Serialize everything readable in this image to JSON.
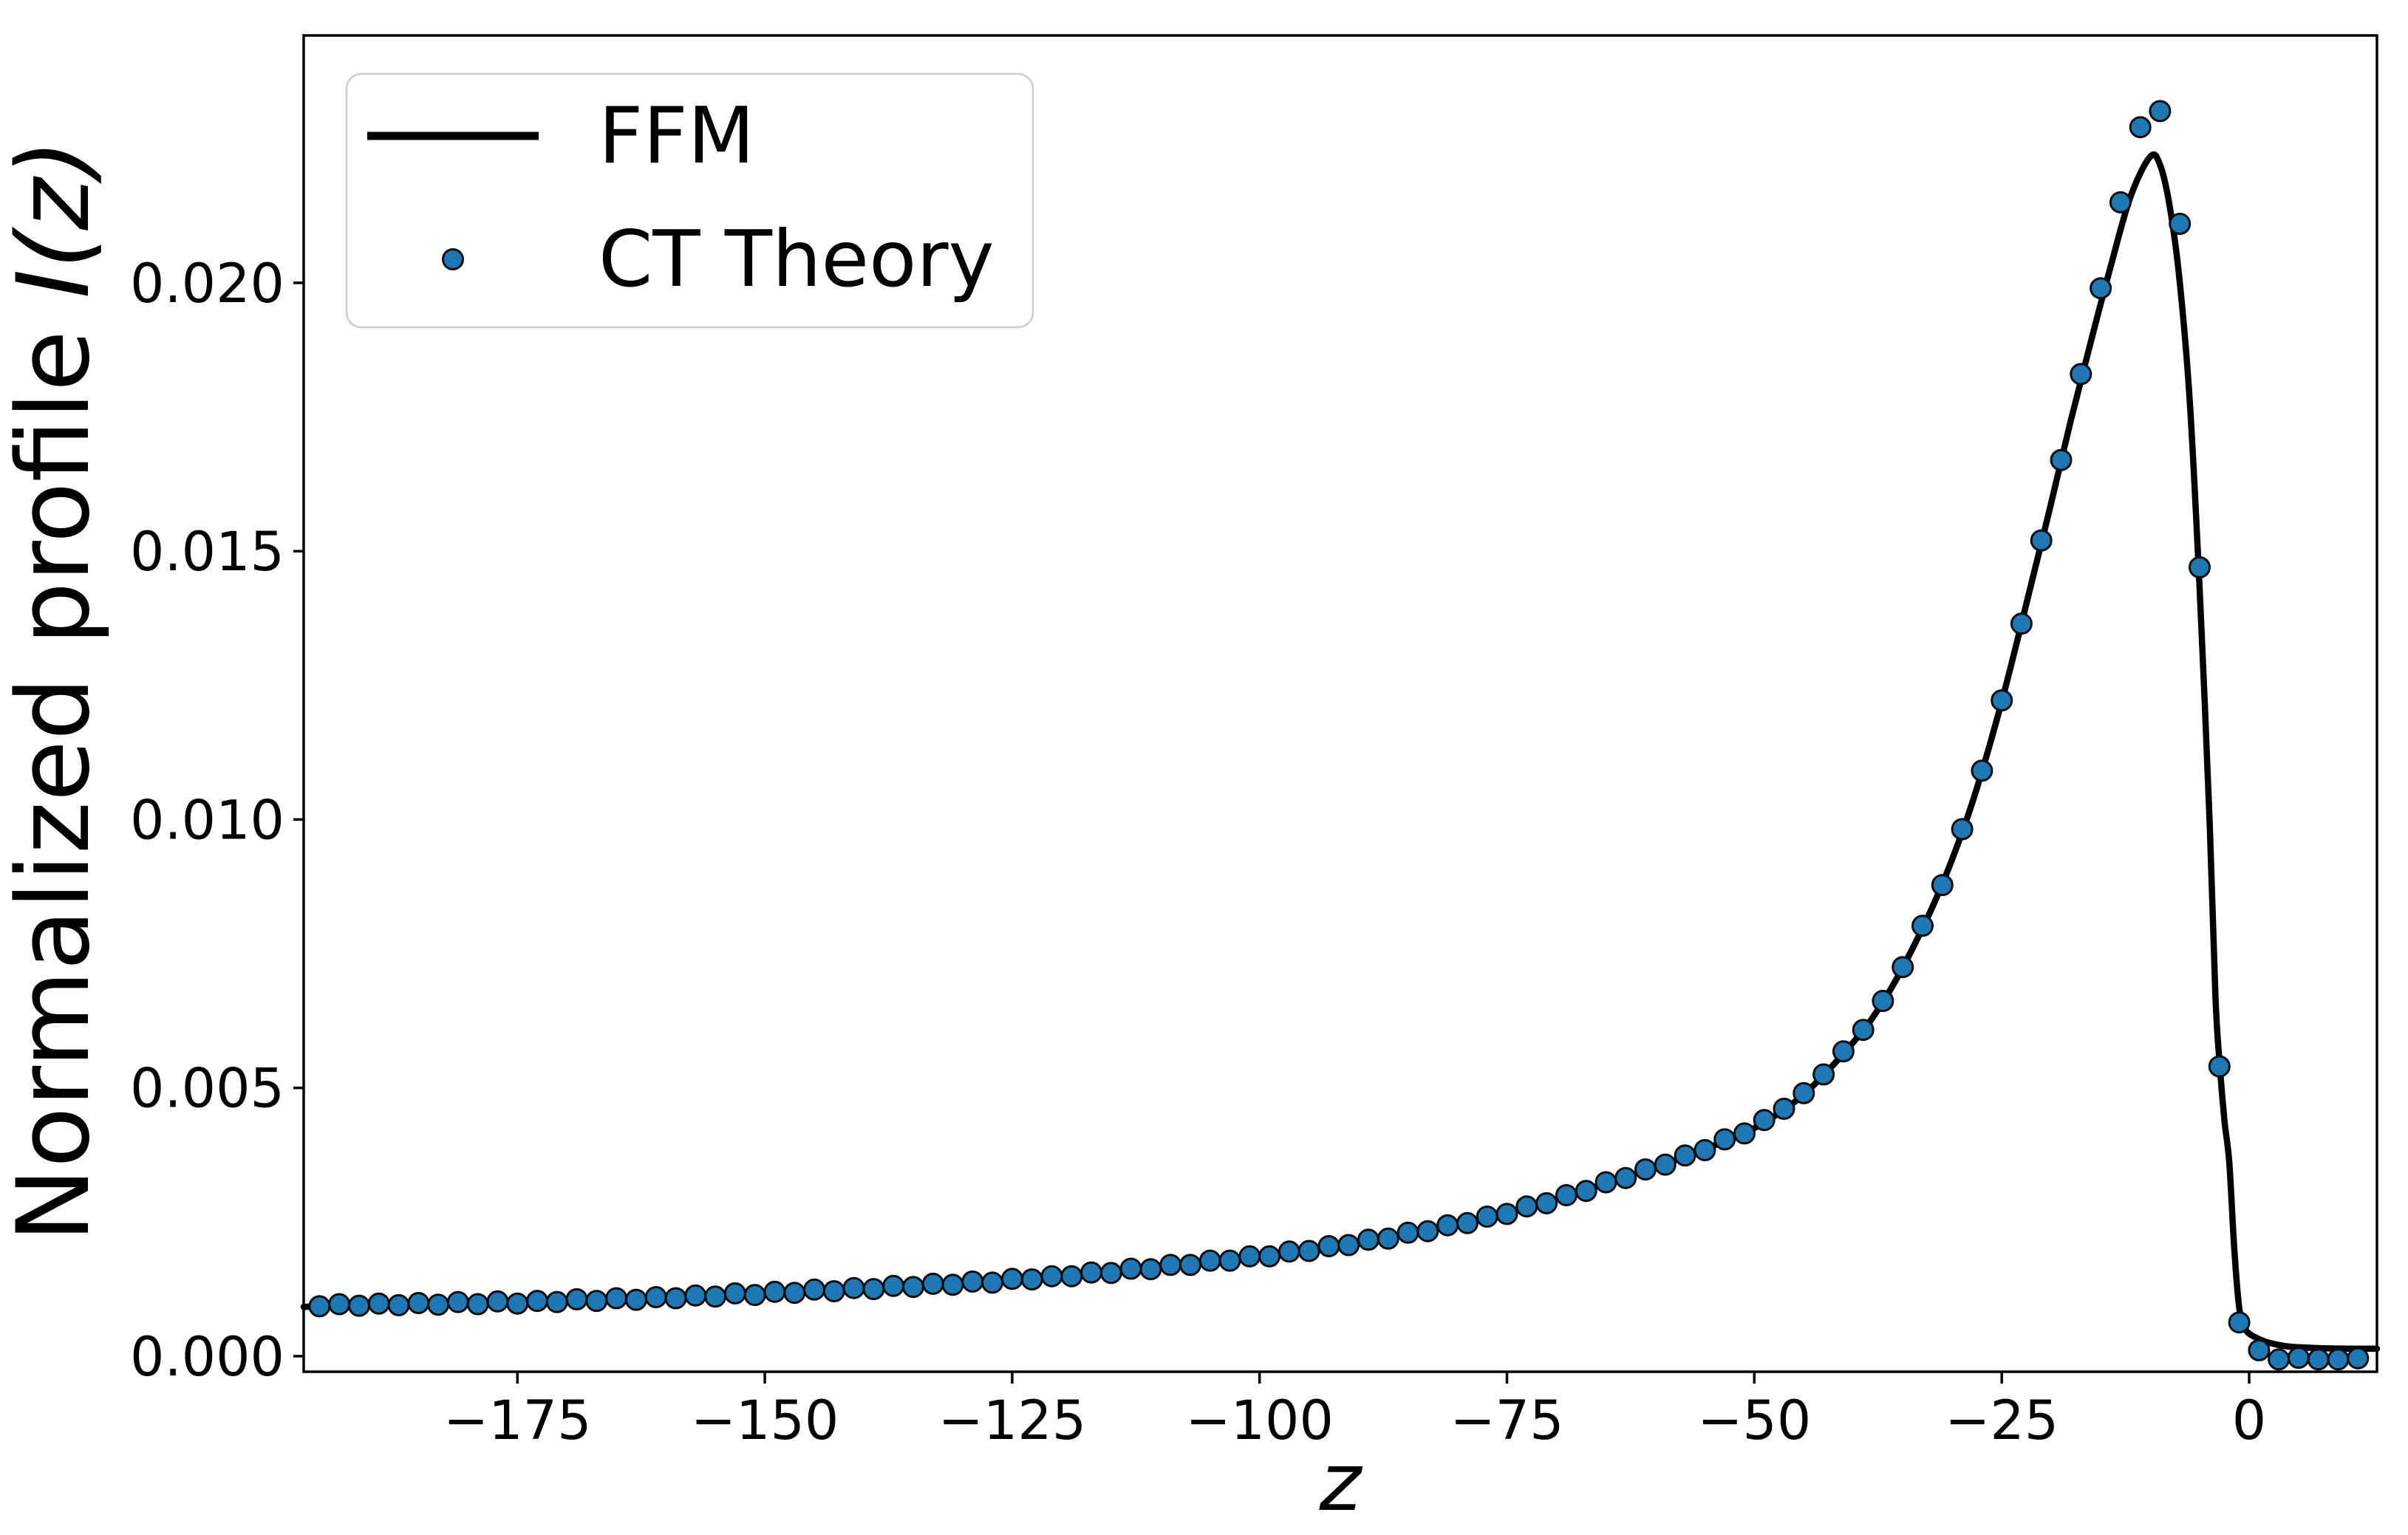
{
  "colors": {
    "background": "#ffffff",
    "line": "#000000",
    "marker_fill": "#1f77b4",
    "marker_edge": "#0d0d0d",
    "axis": "#000000",
    "text": "#000000",
    "legend_border": "#cccccc",
    "legend_fill": "#ffffff"
  },
  "chart_data": {
    "type": "line+scatter",
    "title": "",
    "xlabel": "z",
    "ylabel": "Normalized profile I(z)",
    "ylabel_prefix": "Normalized profile ",
    "ylabel_symbol": "I(z)",
    "xlim": [
      -196.6,
      12.92
    ],
    "ylim": [
      -0.00029,
      0.02461
    ],
    "grid": false,
    "x_ticks": {
      "values": [
        -175,
        -150,
        -125,
        -100,
        -75,
        -50,
        -25,
        0
      ],
      "labels": [
        "−175",
        "−150",
        "−125",
        "−100",
        "−75",
        "−50",
        "−25",
        "0"
      ]
    },
    "y_ticks": {
      "values": [
        0.0,
        0.005,
        0.01,
        0.015,
        0.02
      ],
      "labels": [
        "0.000",
        "0.005",
        "0.010",
        "0.015",
        "0.020"
      ]
    },
    "legend": {
      "position": "upper left",
      "items": [
        {
          "name": "FFM",
          "type": "line"
        },
        {
          "name": "CT Theory",
          "type": "scatter"
        }
      ]
    },
    "series": [
      {
        "name": "FFM",
        "type": "line",
        "color": "#000000",
        "points": [
          [
            -196.6,
            0.00092
          ],
          [
            -190,
            0.00096
          ],
          [
            -180,
            0.00099
          ],
          [
            -170,
            0.00103
          ],
          [
            -160,
            0.00109
          ],
          [
            -150,
            0.00117
          ],
          [
            -140,
            0.00126
          ],
          [
            -130,
            0.00136
          ],
          [
            -120,
            0.00149
          ],
          [
            -110,
            0.00166
          ],
          [
            -100,
            0.00186
          ],
          [
            -95,
            0.00198
          ],
          [
            -90,
            0.00212
          ],
          [
            -85,
            0.00228
          ],
          [
            -80,
            0.00246
          ],
          [
            -75,
            0.00267
          ],
          [
            -70,
            0.00292
          ],
          [
            -65,
            0.00322
          ],
          [
            -60,
            0.00352
          ],
          [
            -55,
            0.00386
          ],
          [
            -50,
            0.00425
          ],
          [
            -45,
            0.00488
          ],
          [
            -40,
            0.00585
          ],
          [
            -37,
            0.0066
          ],
          [
            -34,
            0.0076
          ],
          [
            -31,
            0.0088
          ],
          [
            -28,
            0.0103
          ],
          [
            -25,
            0.0122
          ],
          [
            -22,
            0.0144
          ],
          [
            -20,
            0.0159
          ],
          [
            -18,
            0.01745
          ],
          [
            -16,
            0.0189
          ],
          [
            -14,
            0.0203
          ],
          [
            -12,
            0.0216
          ],
          [
            -10,
            0.02235
          ],
          [
            -9,
            0.0222
          ],
          [
            -8,
            0.0214
          ],
          [
            -7,
            0.02
          ],
          [
            -6,
            0.0178
          ],
          [
            -5,
            0.0143
          ],
          [
            -4,
            0.01
          ],
          [
            -3.4,
            0.0067
          ],
          [
            -3,
            0.0055
          ],
          [
            -2.5,
            0.0044
          ],
          [
            -2,
            0.0036
          ],
          [
            -1.5,
            0.002
          ],
          [
            -1,
            0.0009
          ],
          [
            -0.5,
            0.00055
          ],
          [
            0,
            0.00042
          ],
          [
            1,
            0.00032
          ],
          [
            2,
            0.00025
          ],
          [
            4,
            0.00018
          ],
          [
            7,
            0.00015
          ],
          [
            10,
            0.00014
          ],
          [
            12.92,
            0.00014
          ]
        ]
      },
      {
        "name": "CT Theory",
        "type": "scatter",
        "fill": "#1f77b4",
        "edge": "#0d0d0d",
        "points": [
          [
            -195,
            0.00093
          ],
          [
            -193,
            0.00097
          ],
          [
            -191,
            0.00094
          ],
          [
            -189,
            0.00098
          ],
          [
            -187,
            0.00095
          ],
          [
            -185,
            0.00099
          ],
          [
            -183,
            0.00096
          ],
          [
            -181,
            0.00101
          ],
          [
            -179,
            0.00097
          ],
          [
            -177,
            0.00102
          ],
          [
            -175,
            0.00098
          ],
          [
            -173,
            0.00103
          ],
          [
            -171,
            0.00101
          ],
          [
            -169,
            0.00106
          ],
          [
            -167,
            0.00103
          ],
          [
            -165,
            0.00108
          ],
          [
            -163,
            0.00105
          ],
          [
            -161,
            0.0011
          ],
          [
            -159,
            0.00108
          ],
          [
            -157,
            0.00113
          ],
          [
            -155,
            0.00111
          ],
          [
            -153,
            0.00117
          ],
          [
            -151,
            0.00114
          ],
          [
            -149,
            0.0012
          ],
          [
            -147,
            0.00118
          ],
          [
            -145,
            0.00124
          ],
          [
            -143,
            0.00121
          ],
          [
            -141,
            0.00127
          ],
          [
            -139,
            0.00125
          ],
          [
            -137,
            0.00131
          ],
          [
            -135,
            0.00129
          ],
          [
            -133,
            0.00135
          ],
          [
            -131,
            0.00133
          ],
          [
            -129,
            0.00139
          ],
          [
            -127,
            0.00137
          ],
          [
            -125,
            0.00144
          ],
          [
            -123,
            0.00143
          ],
          [
            -121,
            0.00149
          ],
          [
            -119,
            0.00149
          ],
          [
            -117,
            0.00156
          ],
          [
            -115,
            0.00155
          ],
          [
            -113,
            0.00163
          ],
          [
            -111,
            0.00162
          ],
          [
            -109,
            0.0017
          ],
          [
            -107,
            0.0017
          ],
          [
            -105,
            0.00178
          ],
          [
            -103,
            0.00178
          ],
          [
            -101,
            0.00186
          ],
          [
            -99,
            0.00186
          ],
          [
            -97,
            0.00195
          ],
          [
            -95,
            0.00196
          ],
          [
            -93,
            0.00205
          ],
          [
            -91,
            0.00207
          ],
          [
            -89,
            0.00217
          ],
          [
            -87,
            0.00219
          ],
          [
            -85,
            0.0023
          ],
          [
            -83,
            0.00233
          ],
          [
            -81,
            0.00244
          ],
          [
            -79,
            0.00248
          ],
          [
            -77,
            0.0026
          ],
          [
            -75,
            0.00265
          ],
          [
            -73,
            0.00279
          ],
          [
            -71,
            0.00285
          ],
          [
            -69,
            0.003
          ],
          [
            -67,
            0.00308
          ],
          [
            -65,
            0.00324
          ],
          [
            -63,
            0.00332
          ],
          [
            -61,
            0.00348
          ],
          [
            -59,
            0.00357
          ],
          [
            -57,
            0.00374
          ],
          [
            -55,
            0.00384
          ],
          [
            -53,
            0.00404
          ],
          [
            -51,
            0.00415
          ],
          [
            -49,
            0.0044
          ],
          [
            -47,
            0.00461
          ],
          [
            -45,
            0.0049
          ],
          [
            -43,
            0.00525
          ],
          [
            -41,
            0.00568
          ],
          [
            -39,
            0.00608
          ],
          [
            -37,
            0.00662
          ],
          [
            -35,
            0.00725
          ],
          [
            -33,
            0.00802
          ],
          [
            -31,
            0.00878
          ],
          [
            -29,
            0.00982
          ],
          [
            -27,
            0.01091
          ],
          [
            -25,
            0.01222
          ],
          [
            -23,
            0.01365
          ],
          [
            -21,
            0.0152
          ],
          [
            -19,
            0.0167
          ],
          [
            -17,
            0.0183
          ],
          [
            -15,
            0.0199
          ],
          [
            -13,
            0.0215
          ],
          [
            -11,
            0.0229
          ],
          [
            -9,
            0.0232
          ],
          [
            -7,
            0.0211
          ],
          [
            -5,
            0.0147
          ],
          [
            -3,
            0.0054
          ],
          [
            -1,
            0.00063
          ],
          [
            1,
            0.00011
          ],
          [
            3,
            -6e-05
          ],
          [
            5,
            -3e-05
          ],
          [
            7,
            -6e-05
          ],
          [
            9,
            -6e-05
          ],
          [
            11,
            -4e-05
          ]
        ]
      }
    ]
  }
}
